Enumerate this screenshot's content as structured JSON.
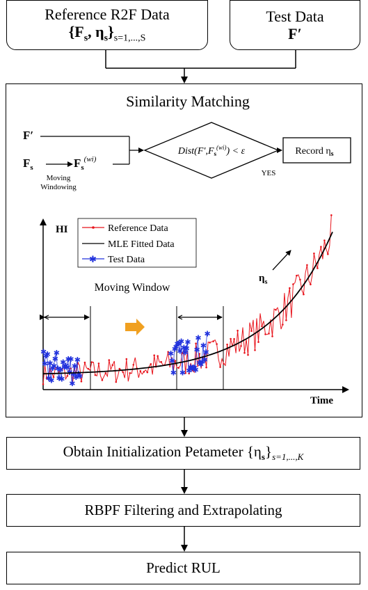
{
  "reference": {
    "title": "Reference R2F Data",
    "formula_main": "{F",
    "formula_sub": "s",
    "formula_mid": ", η",
    "formula_sub2": "s",
    "formula_end": "}",
    "formula_range": "s=1,...,S"
  },
  "test_data": {
    "title": "Test Data",
    "symbol": "F′"
  },
  "similarity": {
    "title": "Similarity Matching",
    "f_prime": "F′",
    "f_s": "F",
    "f_s_sub": "s",
    "f_window": "F",
    "f_window_sub": "s",
    "f_window_sup": "(wi)",
    "moving_label_1": "Moving",
    "moving_label_2": "Windowing",
    "condition": "Dist(F′,F",
    "condition_sub": "s",
    "condition_sup": "(wi)",
    "condition_end": ") < ε",
    "yes_label": "YES",
    "record_label": "Record η",
    "record_sub": "s"
  },
  "chart_data": {
    "type": "line",
    "ylabel": "HI",
    "xlabel": "Time",
    "annotation_window": "Moving Window",
    "annotation_eta": "η",
    "annotation_eta_sub": "s",
    "legend": [
      "Reference Data",
      "MLE Fitted Data",
      "Test Data"
    ],
    "legend_position": "top-left",
    "colors": {
      "reference": "#e8141c",
      "fitted": "#000000",
      "test": "#2233dd",
      "arrow": "#f0a020"
    },
    "xlim": [
      0,
      100
    ],
    "ylim": [
      0,
      10
    ],
    "fitted_curve": {
      "a": 0.9,
      "b": 0.046
    },
    "test_windows": [
      [
        0,
        13
      ],
      [
        44,
        57
      ]
    ]
  },
  "steps": {
    "init_label": "Obtain Initialization  Petameter {η",
    "init_sub": "s",
    "init_end": "}",
    "init_range": "s=1,...,K",
    "rbpf_label": "RBPF Filtering and Extrapolating",
    "predict_label": "Predict RUL"
  }
}
